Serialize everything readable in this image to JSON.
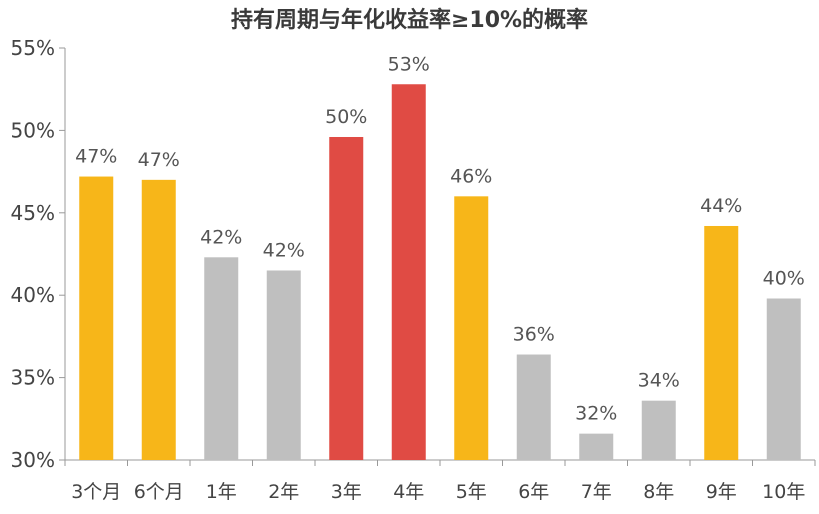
{
  "chart_data": {
    "type": "bar",
    "title": "持有周期与年化收益率≥10%的概率",
    "xlabel": "",
    "ylabel": "",
    "ylim": [
      30,
      55
    ],
    "yticks": [
      "30%",
      "35%",
      "40%",
      "45%",
      "50%",
      "55%"
    ],
    "ytick_values": [
      30,
      35,
      40,
      45,
      50,
      55
    ],
    "categories": [
      "3个月",
      "6个月",
      "1年",
      "2年",
      "3年",
      "4年",
      "5年",
      "6年",
      "7年",
      "8年",
      "9年",
      "10年"
    ],
    "values": [
      47.2,
      47.0,
      42.3,
      41.5,
      49.6,
      52.8,
      46.0,
      36.4,
      31.6,
      33.6,
      44.2,
      39.8
    ],
    "data_labels": [
      "47%",
      "47%",
      "42%",
      "42%",
      "50%",
      "53%",
      "46%",
      "36%",
      "32%",
      "34%",
      "44%",
      "40%"
    ],
    "bar_colors": [
      "#F7B619",
      "#F7B619",
      "#BFBFBF",
      "#BFBFBF",
      "#E04B44",
      "#E04B44",
      "#F7B619",
      "#BFBFBF",
      "#BFBFBF",
      "#BFBFBF",
      "#F7B619",
      "#BFBFBF"
    ],
    "grid": false,
    "legend": "none"
  }
}
